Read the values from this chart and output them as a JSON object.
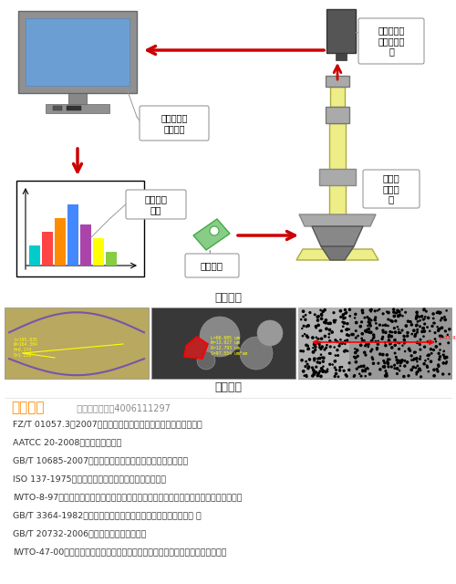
{
  "title_instrument": "仪器构造",
  "title_test": "试验图片",
  "standards_title": "适用标准",
  "standards_more": "  更多标准，咨询4006111297",
  "standards": [
    "FZ/T 01057.3－2007《纺织纤维鉴别实验方法第三部分显微镜法》",
    "AATCC 20-2008《纤维定性分析》",
    "GB/T 10685-2007《羊毛纤维直径试验方法一投影显微镜法》",
    "ISO 137-1975《羊毛一纤维直径测定一投影显微镜法》",
    "IWTO-8-97《显微投影仪测定羊毛纤维直径分布及羊毛和其他动物纤维髓化百分比的方法》",
    "GB/T 3364-1982《碳纤维直径和当量直径检验方法（显微镜法） 》",
    "GB/T 20732-2006《纤维直径光学分析仪》",
    "IWTO-47-00《光学纤维直径分析仪测定羊毛纤维平均直径及其分布的方法的规定》"
  ],
  "label_image_analysis": "图像分析系\n统软硬件",
  "label_camera": "工业摄像头\n或数字照相\n机",
  "label_data": "数据分析\n报表",
  "label_sample": "测试样品",
  "label_microscope": "专用光\n学显微\n镜",
  "bg_color": "#ffffff",
  "standards_title_color": "#FF8C00",
  "standards_text_color": "#333333",
  "arrow_color": "#cc0000",
  "bar_colors": [
    "#00CCCC",
    "#FF4444",
    "#FF8C00",
    "#4488FF",
    "#AA44AA",
    "#FFFF00",
    "#88CC44"
  ],
  "bar_heights": [
    3,
    5,
    7,
    9,
    6,
    4,
    2
  ]
}
